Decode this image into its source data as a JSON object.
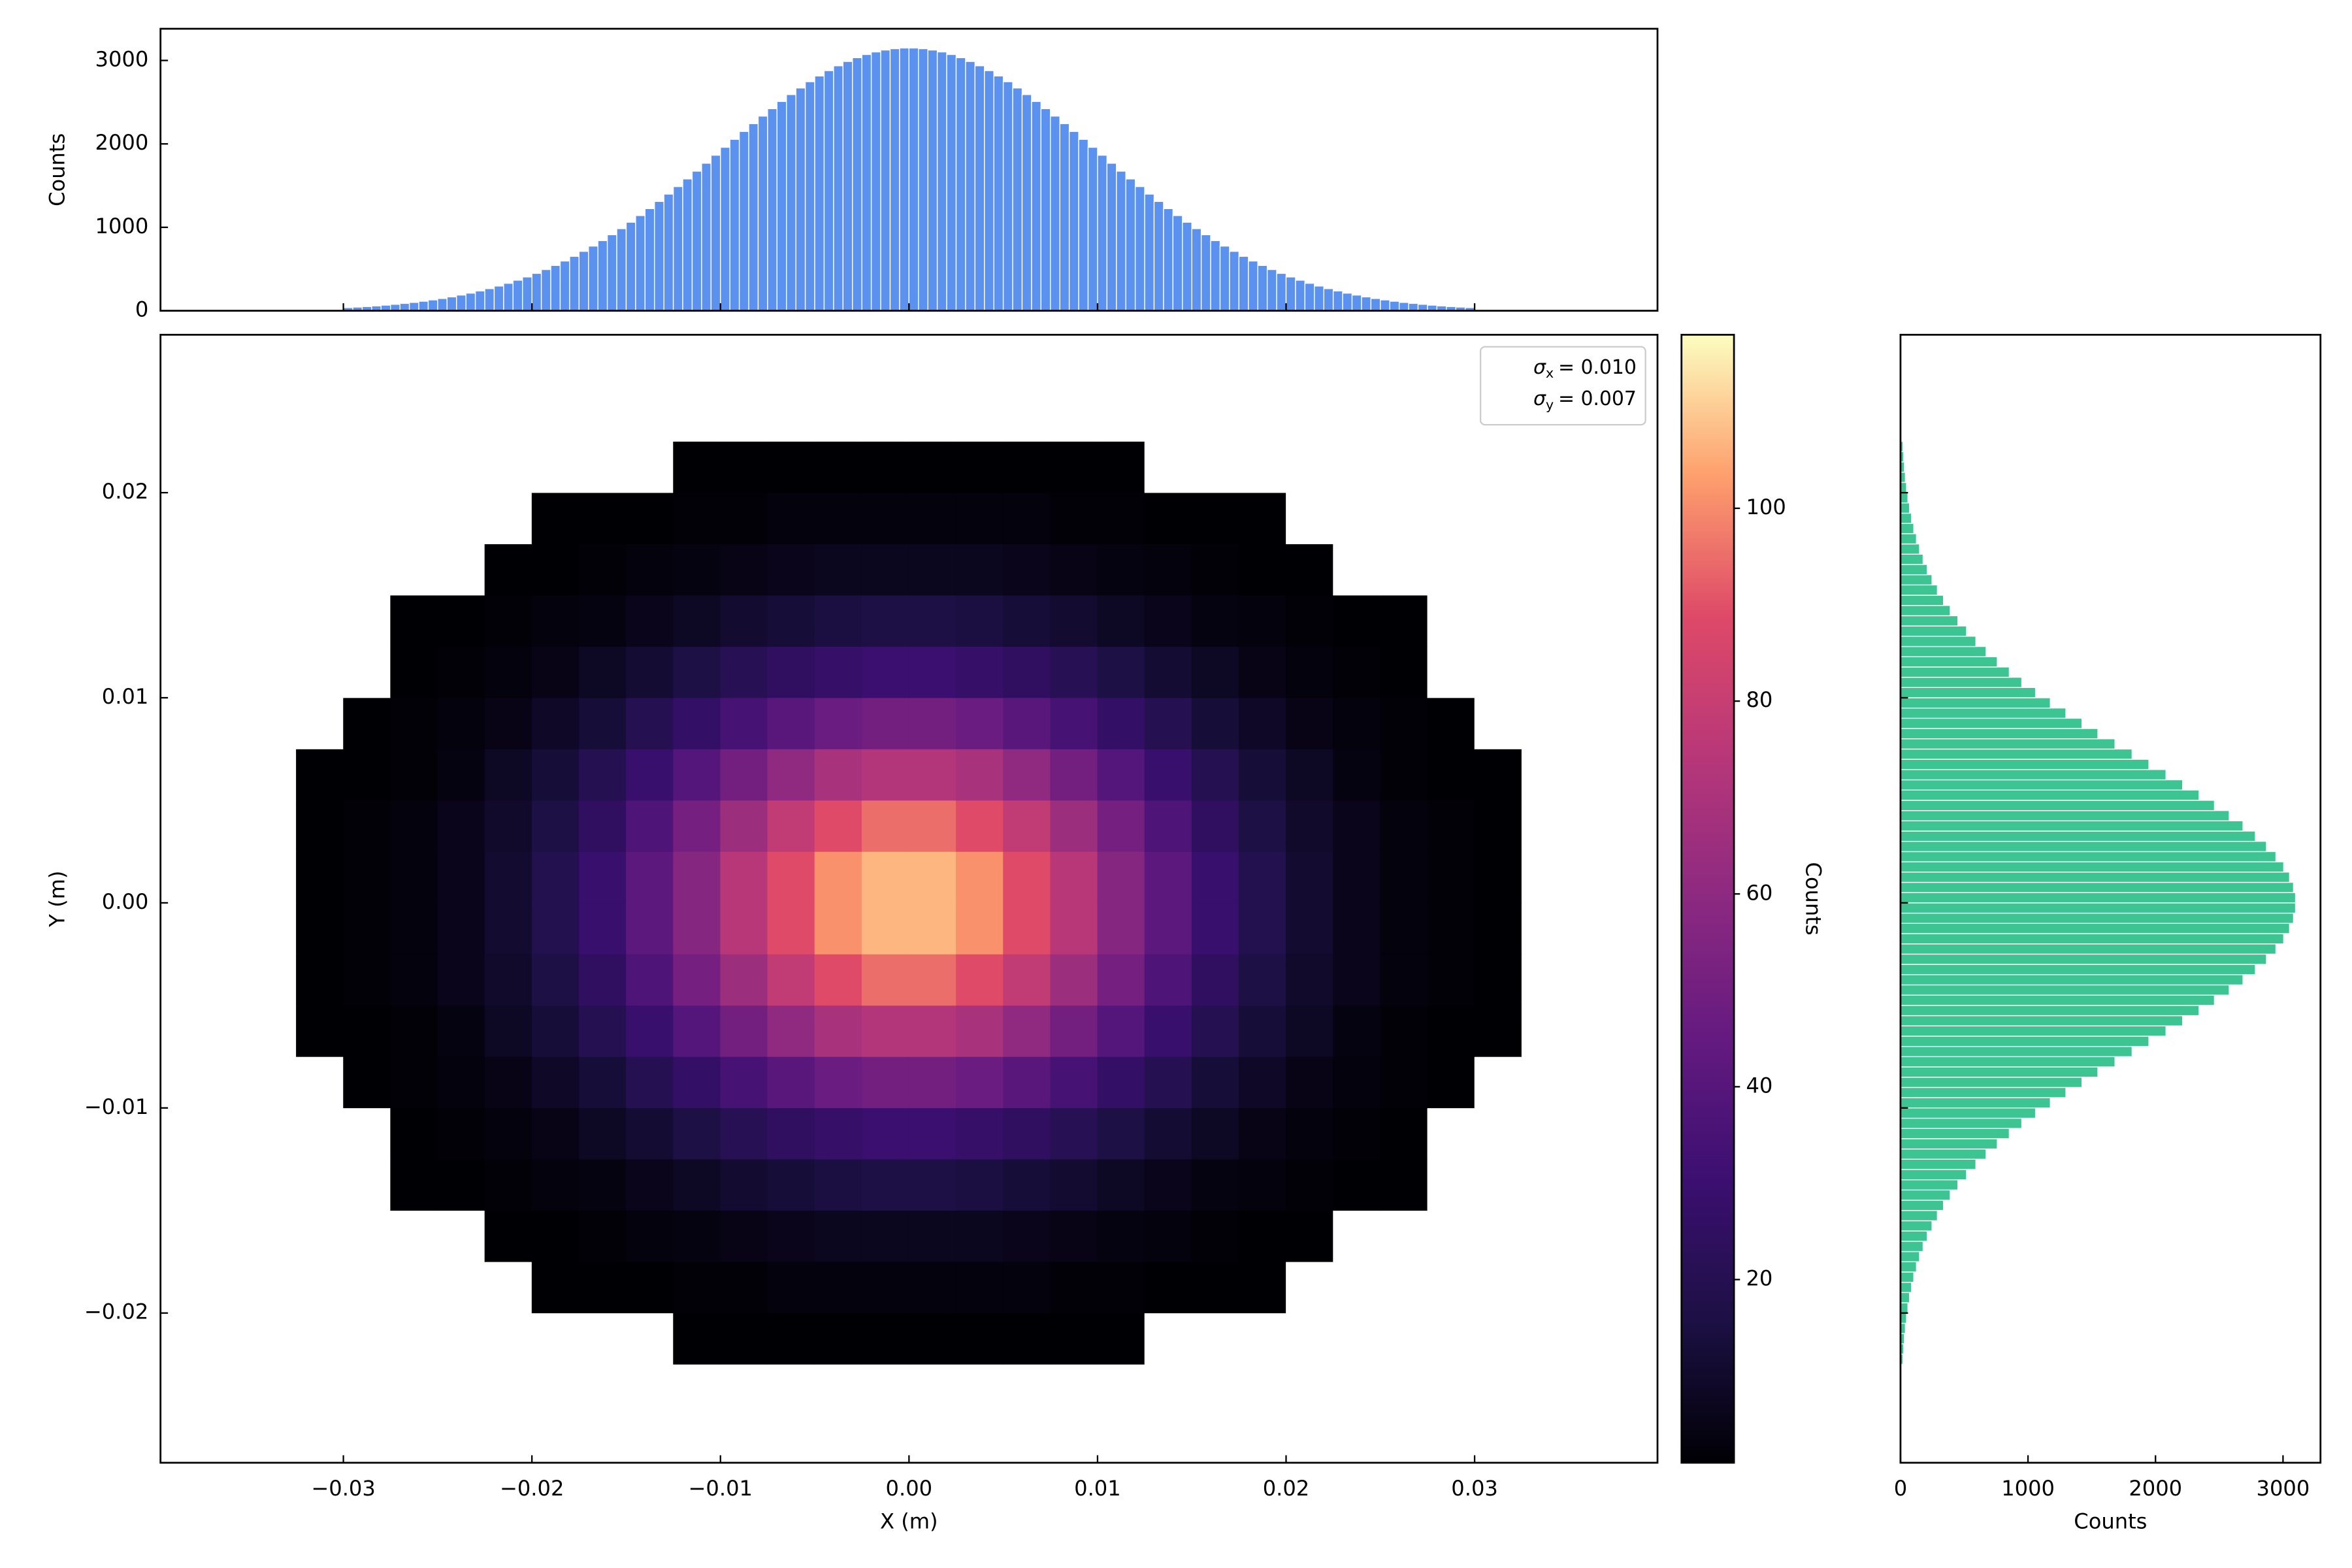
{
  "chart_data": [
    {
      "type": "histogram",
      "orientation": "vertical",
      "bins": [
        -0.03,
        -0.0295,
        -0.029,
        -0.0285,
        -0.028,
        -0.0275,
        -0.027,
        -0.0265,
        -0.026,
        -0.0255,
        -0.025,
        -0.0245,
        -0.024,
        -0.0235,
        -0.023,
        -0.0225,
        -0.022,
        -0.0215,
        -0.021,
        -0.0205,
        -0.02,
        -0.0195,
        -0.019,
        -0.0185,
        -0.018,
        -0.0175,
        -0.017,
        -0.0165,
        -0.016,
        -0.0155,
        -0.015,
        -0.0145,
        -0.014,
        -0.0135,
        -0.013,
        -0.0125,
        -0.012,
        -0.0115,
        -0.011,
        -0.0105,
        -0.01,
        -0.0095,
        -0.009,
        -0.0085,
        -0.008,
        -0.0075,
        -0.007,
        -0.0065,
        -0.006,
        -0.0055,
        -0.005,
        -0.0045,
        -0.004,
        -0.0035,
        -0.003,
        -0.0025,
        -0.002,
        -0.0015,
        -0.001,
        -0.0005,
        0,
        0.0005,
        0.001,
        0.0015,
        0.002,
        0.0025,
        0.003,
        0.0035,
        0.004,
        0.0045,
        0.005,
        0.0055,
        0.006,
        0.0065,
        0.007,
        0.0075,
        0.008,
        0.0085,
        0.009,
        0.0095,
        0.01,
        0.0105,
        0.011,
        0.0115,
        0.012,
        0.0125,
        0.013,
        0.0135,
        0.014,
        0.0145,
        0.015,
        0.0155,
        0.016,
        0.0165,
        0.017,
        0.0175,
        0.018,
        0.0185,
        0.019,
        0.0195,
        0.02,
        0.0205,
        0.021,
        0.0215,
        0.022,
        0.0225,
        0.023,
        0.0235,
        0.024,
        0.0245,
        0.025,
        0.0255,
        0.026,
        0.0265,
        0.027,
        0.0275,
        0.028,
        0.0285,
        0.029,
        0.0295,
        0.03
      ],
      "values": [
        38,
        44,
        50,
        58,
        67,
        77,
        88,
        100,
        114,
        130,
        147,
        166,
        188,
        211,
        237,
        265,
        296,
        329,
        366,
        405,
        448,
        494,
        543,
        596,
        652,
        712,
        775,
        841,
        911,
        984,
        1061,
        1141,
        1224,
        1310,
        1398,
        1488,
        1580,
        1673,
        1768,
        1864,
        1959,
        2054,
        2149,
        2242,
        2333,
        2422,
        2508,
        2591,
        2670,
        2745,
        2814,
        2878,
        2936,
        2988,
        3033,
        3071,
        3102,
        3125,
        3141,
        3149,
        3149,
        3141,
        3125,
        3102,
        3071,
        3033,
        2988,
        2936,
        2878,
        2814,
        2745,
        2670,
        2591,
        2508,
        2422,
        2333,
        2242,
        2149,
        2054,
        1959,
        1864,
        1768,
        1673,
        1580,
        1488,
        1398,
        1310,
        1224,
        1141,
        1061,
        984,
        911,
        841,
        775,
        712,
        652,
        596,
        543,
        494,
        448,
        405,
        366,
        329,
        296,
        265,
        237,
        211,
        188,
        166,
        147,
        130,
        114,
        100,
        88,
        77,
        67,
        58,
        50,
        44,
        38
      ],
      "color": "#5b91ef",
      "xlim": [
        -0.0397,
        0.0397
      ],
      "ylim": [
        0,
        3380
      ],
      "xticks": [
        -0.03,
        -0.02,
        -0.01,
        0,
        0.01,
        0.02,
        0.03
      ],
      "xtick_labels": false,
      "yticks": [
        0,
        1000,
        2000,
        3000
      ],
      "ytick_labels": true,
      "ylabel": "Counts"
    },
    {
      "type": "hist2d",
      "x_edges": [
        -0.04,
        -0.0375,
        -0.035,
        -0.0325,
        -0.03,
        -0.0275,
        -0.025,
        -0.0225,
        -0.02,
        -0.0175,
        -0.015,
        -0.0125,
        -0.01,
        -0.0075,
        -0.005,
        -0.0025,
        0,
        0.0025,
        0.005,
        0.0075,
        0.01,
        0.0125,
        0.015,
        0.0175,
        0.02,
        0.0225,
        0.025,
        0.0275,
        0.03,
        0.0325,
        0.035,
        0.0375,
        0.04
      ],
      "y_edges": [
        -0.0275,
        -0.025,
        -0.0225,
        -0.02,
        -0.0175,
        -0.015,
        -0.0125,
        -0.01,
        -0.0075,
        -0.005,
        -0.0025,
        0,
        0.0025,
        0.005,
        0.0075,
        0.01,
        0.0125,
        0.015,
        0.0175,
        0.02,
        0.0225,
        0.025,
        0.0275
      ],
      "values": [
        [
          0,
          0,
          0,
          0,
          0,
          0,
          0,
          0,
          0,
          0,
          0,
          0,
          0,
          0,
          0,
          0,
          0,
          0,
          0,
          0,
          0,
          0,
          0,
          0,
          0,
          0,
          0,
          0,
          0,
          0,
          0,
          0
        ],
        [
          0,
          0,
          0,
          0,
          0,
          0,
          0,
          0,
          0,
          0,
          0,
          0,
          0,
          0,
          0,
          0,
          0,
          0,
          0,
          0,
          0,
          0,
          0,
          0,
          0,
          0,
          0,
          0,
          0,
          0,
          0,
          0
        ],
        [
          0,
          0,
          0,
          0,
          0,
          0,
          0,
          0,
          0,
          0,
          0,
          1,
          1,
          1,
          1,
          1,
          1,
          1,
          1,
          1,
          1,
          0,
          0,
          0,
          0,
          0,
          0,
          0,
          0,
          0,
          0,
          0
        ],
        [
          0,
          0,
          0,
          0,
          0,
          0,
          0,
          0,
          1,
          1,
          1,
          2,
          2,
          3,
          3,
          3,
          3,
          3,
          3,
          2,
          2,
          1,
          1,
          1,
          0,
          0,
          0,
          0,
          0,
          0,
          0,
          0
        ],
        [
          0,
          0,
          0,
          0,
          0,
          0,
          0,
          1,
          1,
          2,
          3,
          4,
          5,
          6,
          7,
          7,
          7,
          7,
          6,
          5,
          4,
          3,
          2,
          1,
          1,
          0,
          0,
          0,
          0,
          0,
          0,
          0
        ],
        [
          0,
          0,
          0,
          0,
          0,
          1,
          1,
          2,
          3,
          4,
          6,
          8,
          11,
          13,
          15,
          16,
          16,
          15,
          13,
          11,
          8,
          6,
          4,
          3,
          2,
          1,
          1,
          0,
          0,
          0,
          0,
          0
        ],
        [
          0,
          0,
          0,
          0,
          0,
          1,
          2,
          3,
          5,
          8,
          12,
          16,
          21,
          25,
          28,
          30,
          30,
          28,
          25,
          21,
          16,
          12,
          8,
          5,
          3,
          2,
          1,
          0,
          0,
          0,
          0,
          0
        ],
        [
          0,
          0,
          0,
          0,
          1,
          2,
          3,
          5,
          9,
          13,
          20,
          27,
          34,
          41,
          47,
          50,
          50,
          47,
          41,
          34,
          27,
          20,
          13,
          9,
          5,
          3,
          2,
          1,
          0,
          0,
          0,
          0
        ],
        [
          0,
          0,
          0,
          1,
          1,
          2,
          4,
          8,
          13,
          20,
          29,
          39,
          50,
          61,
          69,
          73,
          73,
          69,
          61,
          50,
          39,
          29,
          20,
          13,
          8,
          4,
          2,
          1,
          1,
          0,
          0,
          0
        ],
        [
          0,
          0,
          0,
          1,
          2,
          3,
          6,
          10,
          16,
          25,
          37,
          51,
          65,
          78,
          89,
          95,
          95,
          89,
          78,
          65,
          51,
          37,
          25,
          16,
          10,
          6,
          3,
          2,
          1,
          0,
          0,
          0
        ],
        [
          0,
          0,
          0,
          1,
          2,
          3,
          6,
          11,
          19,
          29,
          42,
          57,
          74,
          89,
          101,
          107,
          107,
          101,
          89,
          74,
          57,
          42,
          29,
          19,
          11,
          6,
          3,
          2,
          1,
          0,
          0,
          0
        ],
        [
          0,
          0,
          0,
          1,
          2,
          3,
          6,
          11,
          19,
          29,
          42,
          57,
          74,
          89,
          101,
          107,
          107,
          101,
          89,
          74,
          57,
          42,
          29,
          19,
          11,
          6,
          3,
          2,
          1,
          0,
          0,
          0
        ],
        [
          0,
          0,
          0,
          1,
          2,
          3,
          6,
          10,
          16,
          25,
          37,
          51,
          65,
          78,
          89,
          95,
          95,
          89,
          78,
          65,
          51,
          37,
          25,
          16,
          10,
          6,
          3,
          2,
          1,
          0,
          0,
          0
        ],
        [
          0,
          0,
          0,
          1,
          1,
          2,
          4,
          8,
          13,
          20,
          29,
          39,
          50,
          61,
          69,
          73,
          73,
          69,
          61,
          50,
          39,
          29,
          20,
          13,
          8,
          4,
          2,
          1,
          1,
          0,
          0,
          0
        ],
        [
          0,
          0,
          0,
          0,
          1,
          2,
          3,
          5,
          9,
          13,
          20,
          27,
          34,
          41,
          47,
          50,
          50,
          47,
          41,
          34,
          27,
          20,
          13,
          9,
          5,
          3,
          2,
          1,
          0,
          0,
          0,
          0
        ],
        [
          0,
          0,
          0,
          0,
          0,
          1,
          2,
          3,
          5,
          8,
          12,
          16,
          21,
          25,
          28,
          30,
          30,
          28,
          25,
          21,
          16,
          12,
          8,
          5,
          3,
          2,
          1,
          0,
          0,
          0,
          0,
          0
        ],
        [
          0,
          0,
          0,
          0,
          0,
          1,
          1,
          2,
          3,
          4,
          6,
          8,
          11,
          13,
          15,
          16,
          16,
          15,
          13,
          11,
          8,
          6,
          4,
          3,
          2,
          1,
          1,
          0,
          0,
          0,
          0,
          0
        ],
        [
          0,
          0,
          0,
          0,
          0,
          0,
          0,
          1,
          1,
          2,
          3,
          4,
          5,
          6,
          7,
          7,
          7,
          7,
          6,
          5,
          4,
          3,
          2,
          1,
          1,
          0,
          0,
          0,
          0,
          0,
          0,
          0
        ],
        [
          0,
          0,
          0,
          0,
          0,
          0,
          0,
          0,
          1,
          1,
          1,
          2,
          2,
          3,
          3,
          3,
          3,
          3,
          3,
          2,
          2,
          1,
          1,
          1,
          0,
          0,
          0,
          0,
          0,
          0,
          0,
          0
        ],
        [
          0,
          0,
          0,
          0,
          0,
          0,
          0,
          0,
          0,
          0,
          0,
          1,
          1,
          1,
          1,
          1,
          1,
          1,
          1,
          1,
          1,
          0,
          0,
          0,
          0,
          0,
          0,
          0,
          0,
          0,
          0,
          0
        ],
        [
          0,
          0,
          0,
          0,
          0,
          0,
          0,
          0,
          0,
          0,
          0,
          0,
          0,
          0,
          0,
          0,
          0,
          0,
          0,
          0,
          0,
          0,
          0,
          0,
          0,
          0,
          0,
          0,
          0,
          0,
          0,
          0
        ],
        [
          0,
          0,
          0,
          0,
          0,
          0,
          0,
          0,
          0,
          0,
          0,
          0,
          0,
          0,
          0,
          0,
          0,
          0,
          0,
          0,
          0,
          0,
          0,
          0,
          0,
          0,
          0,
          0,
          0,
          0,
          0,
          0
        ]
      ],
      "xlim": [
        -0.0397,
        0.0397
      ],
      "ylim": [
        -0.0273,
        0.0277
      ],
      "xticks": [
        {
          "value": -0.03,
          "label": "−0.03"
        },
        {
          "value": -0.02,
          "label": "−0.02"
        },
        {
          "value": -0.01,
          "label": "−0.01"
        },
        {
          "value": 0,
          "label": "0.00"
        },
        {
          "value": 0.01,
          "label": "0.01"
        },
        {
          "value": 0.02,
          "label": "0.02"
        },
        {
          "value": 0.03,
          "label": "0.03"
        }
      ],
      "yticks": [
        {
          "value": -0.02,
          "label": "−0.02"
        },
        {
          "value": -0.01,
          "label": "−0.01"
        },
        {
          "value": 0,
          "label": "0.00"
        },
        {
          "value": 0.01,
          "label": "0.01"
        },
        {
          "value": 0.02,
          "label": "0.02"
        }
      ],
      "xlabel": "X (m)",
      "ylabel": "Y (m)",
      "colormap": [
        "#000004",
        "#1c1044",
        "#3b0f70",
        "#641a80",
        "#8c2981",
        "#b73779",
        "#de4968",
        "#fe9f6d",
        "#fcfdbf"
      ],
      "clim": [
        1,
        118
      ],
      "cticks": [
        20,
        40,
        60,
        80,
        100
      ],
      "clabel": "Counts",
      "legend": "upper right",
      "stats": [
        {
          "symbol": "σ",
          "subscript": "x",
          "text": "= 0.010"
        },
        {
          "symbol": "σ",
          "subscript": "y",
          "text": "= 0.007"
        }
      ]
    },
    {
      "type": "histogram",
      "orientation": "horizontal",
      "bins": [
        -0.0225,
        -0.022,
        -0.0215,
        -0.021,
        -0.0205,
        -0.02,
        -0.0195,
        -0.019,
        -0.0185,
        -0.018,
        -0.0175,
        -0.017,
        -0.0165,
        -0.016,
        -0.0155,
        -0.015,
        -0.0145,
        -0.014,
        -0.0135,
        -0.013,
        -0.0125,
        -0.012,
        -0.0115,
        -0.011,
        -0.0105,
        -0.01,
        -0.0095,
        -0.009,
        -0.0085,
        -0.008,
        -0.0075,
        -0.007,
        -0.0065,
        -0.006,
        -0.0055,
        -0.005,
        -0.0045,
        -0.004,
        -0.0035,
        -0.003,
        -0.0025,
        -0.002,
        -0.0015,
        -0.001,
        -0.0005,
        0,
        0.0005,
        0.001,
        0.0015,
        0.002,
        0.0025,
        0.003,
        0.0035,
        0.004,
        0.0045,
        0.005,
        0.0055,
        0.006,
        0.0065,
        0.007,
        0.0075,
        0.008,
        0.0085,
        0.009,
        0.0095,
        0.01,
        0.0105,
        0.011,
        0.0115,
        0.012,
        0.0125,
        0.013,
        0.0135,
        0.014,
        0.0145,
        0.015,
        0.0155,
        0.016,
        0.0165,
        0.017,
        0.0175,
        0.018,
        0.0185,
        0.019,
        0.0195,
        0.02,
        0.0205,
        0.021,
        0.0215,
        0.022,
        0.0225
      ],
      "values": [
        20,
        25,
        31,
        38,
        47,
        58,
        71,
        86,
        104,
        125,
        149,
        177,
        209,
        247,
        289,
        337,
        390,
        450,
        518,
        591,
        671,
        759,
        853,
        951,
        1059,
        1175,
        1297,
        1423,
        1548,
        1682,
        1816,
        1948,
        2082,
        2213,
        2341,
        2462,
        2578,
        2686,
        2783,
        2870,
        2944,
        3005,
        3051,
        3082,
        3098,
        3098,
        3082,
        3051,
        3005,
        2944,
        2870,
        2783,
        2686,
        2578,
        2462,
        2341,
        2213,
        2082,
        1948,
        1816,
        1682,
        1548,
        1423,
        1297,
        1175,
        1059,
        951,
        853,
        759,
        671,
        591,
        518,
        450,
        390,
        337,
        289,
        247,
        209,
        177,
        149,
        125,
        104,
        86,
        71,
        58,
        47,
        38,
        31,
        25,
        20
      ],
      "color": "#3cc493",
      "xlim": [
        0,
        3294
      ],
      "ylim": [
        -0.0273,
        0.0277
      ],
      "xticks": [
        0,
        1000,
        2000,
        3000
      ],
      "xtick_labels": true,
      "yticks": [
        -0.02,
        -0.01,
        0,
        0.01,
        0.02
      ],
      "ytick_labels": false,
      "xlabel": "Counts"
    }
  ]
}
